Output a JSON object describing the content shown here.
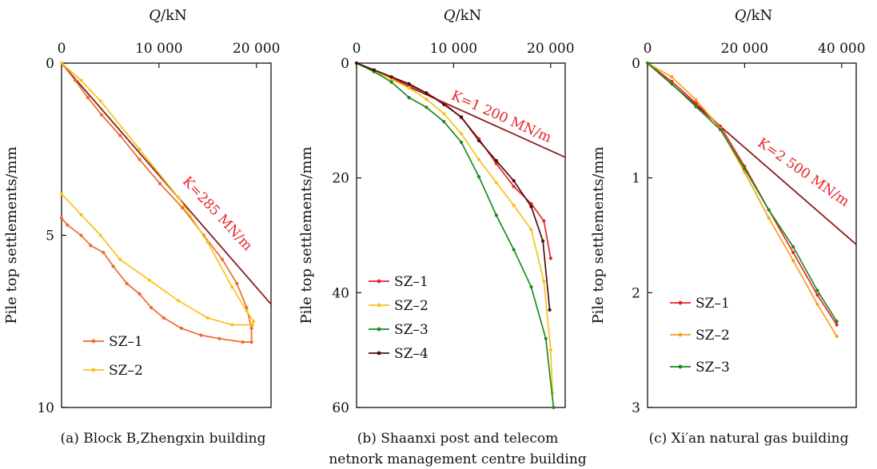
{
  "chart_data": [
    {
      "type": "line",
      "caption": "(a) Block B,Zhengxin building",
      "xlabel_var": "Q",
      "xlabel_unit": "/kN",
      "ylabel": "Pile top settlements/mm",
      "xlim": [
        0,
        21500
      ],
      "ylim": [
        0,
        10
      ],
      "y_inverted": true,
      "x_axis_position": "top",
      "xticks": [
        0,
        10000,
        20000
      ],
      "xtick_labels": [
        "0",
        "10 000",
        "20 000"
      ],
      "yticks": [
        0,
        5,
        10
      ],
      "ytick_labels": [
        "0",
        "5",
        "10"
      ],
      "stiffness_line": {
        "label": "K=285 MN/m",
        "x": [
          0,
          21500
        ],
        "y": [
          0,
          7.0
        ],
        "color": "#8b1a1a"
      },
      "legend_position": "bottom-left",
      "series": [
        {
          "name": "SZ-1",
          "color": "#ef6a2a",
          "x": [
            0,
            1400,
            2700,
            4100,
            6000,
            8000,
            10100,
            12400,
            14600,
            16500,
            18000,
            19000,
            19500,
            19500,
            18600,
            16200,
            14300,
            12300,
            10500,
            9200,
            8000,
            6700,
            5300,
            4300,
            3000,
            2000,
            600,
            0
          ],
          "y": [
            0,
            0.5,
            1.0,
            1.5,
            2.1,
            2.8,
            3.5,
            4.2,
            5.0,
            5.7,
            6.4,
            7.1,
            7.7,
            8.1,
            8.1,
            8.0,
            7.9,
            7.7,
            7.4,
            7.1,
            6.7,
            6.4,
            5.9,
            5.5,
            5.3,
            5.0,
            4.7,
            4.5
          ]
        },
        {
          "name": "SZ-2",
          "color": "#f6c31b",
          "x": [
            0,
            2000,
            4000,
            8000,
            12000,
            15000,
            17500,
            19000,
            19700,
            19600,
            17500,
            15000,
            12000,
            9000,
            6000,
            4000,
            2000,
            0
          ],
          "y": [
            0,
            0.5,
            1.1,
            2.5,
            3.9,
            5.2,
            6.5,
            7.2,
            7.5,
            7.6,
            7.6,
            7.4,
            6.9,
            6.3,
            5.7,
            5.0,
            4.4,
            3.8
          ]
        }
      ]
    },
    {
      "type": "line",
      "caption_line1": "(b) Shaanxi post and telecom",
      "caption_line2": "netnork management centre building",
      "xlabel_var": "Q",
      "xlabel_unit": "/kN",
      "ylabel": "Pile top settlements/mm",
      "xlim": [
        0,
        21500
      ],
      "ylim": [
        0,
        60
      ],
      "y_inverted": true,
      "x_axis_position": "top",
      "xticks": [
        0,
        10000,
        20000
      ],
      "xtick_labels": [
        "0",
        "10 000",
        "20 000"
      ],
      "yticks": [
        0,
        20,
        40,
        60
      ],
      "ytick_labels": [
        "0",
        "20",
        "40",
        "60"
      ],
      "stiffness_line": {
        "label": "K=1 200 MN/m",
        "x": [
          0,
          21500
        ],
        "y": [
          0,
          16.4
        ],
        "color": "#8b1a1a"
      },
      "legend_position": "bottom-left",
      "series": [
        {
          "name": "SZ-1",
          "color": "#e8232a",
          "x": [
            0,
            1800,
            3600,
            5400,
            7200,
            9000,
            10800,
            12600,
            14400,
            16200,
            18000,
            19300,
            20000
          ],
          "y": [
            0,
            1.2,
            2.6,
            3.8,
            5.2,
            7.0,
            9.5,
            13.2,
            17.5,
            21.5,
            24.5,
            27.5,
            34.0
          ]
        },
        {
          "name": "SZ-2",
          "color": "#f6c31b",
          "x": [
            0,
            1800,
            3600,
            5400,
            7200,
            9000,
            10800,
            12600,
            14400,
            16200,
            18000,
            19300,
            20000,
            20200
          ],
          "y": [
            0,
            1.3,
            2.8,
            4.3,
            6.3,
            8.8,
            12.3,
            16.8,
            20.8,
            24.8,
            29.0,
            38.0,
            50.0,
            57.5
          ]
        },
        {
          "name": "SZ-3",
          "color": "#1e8a1e",
          "x": [
            0,
            1800,
            3600,
            5400,
            7200,
            9000,
            10800,
            12600,
            14400,
            16200,
            18000,
            19500,
            20300
          ],
          "y": [
            0,
            1.5,
            3.3,
            6.0,
            7.7,
            10.2,
            13.8,
            19.8,
            26.5,
            32.5,
            39.0,
            48.0,
            60.0
          ]
        },
        {
          "name": "SZ-4",
          "color": "#4a0f0f",
          "x": [
            0,
            1800,
            3600,
            5400,
            7200,
            9000,
            10800,
            12600,
            14400,
            16200,
            18000,
            19200,
            19900
          ],
          "y": [
            0,
            1.2,
            2.4,
            3.6,
            5.2,
            7.2,
            9.4,
            13.5,
            17.0,
            20.5,
            25.0,
            31.0,
            43.0
          ]
        }
      ]
    },
    {
      "type": "line",
      "caption": "(c) Xi′an natural gas building",
      "xlabel_var": "Q",
      "xlabel_unit": "/kN",
      "ylabel": "Pile top settlements/mm",
      "xlim": [
        0,
        43000
      ],
      "ylim": [
        0,
        3
      ],
      "y_inverted": true,
      "x_axis_position": "top",
      "xticks": [
        0,
        20000,
        40000
      ],
      "xtick_labels": [
        "0",
        "20 000",
        "40 000"
      ],
      "yticks": [
        0,
        1,
        2,
        3
      ],
      "ytick_labels": [
        "0",
        "1",
        "2",
        "3"
      ],
      "stiffness_line": {
        "label": "K=2 500 MN/m",
        "x": [
          0,
          43000
        ],
        "y": [
          0,
          1.58
        ],
        "color": "#8b1a1a"
      },
      "legend_position": "bottom-left",
      "series": [
        {
          "name": "SZ-1",
          "color": "#e8232a",
          "x": [
            0,
            5000,
            10000,
            15000,
            20000,
            25000,
            30000,
            35000,
            39000
          ],
          "y": [
            0,
            0.16,
            0.35,
            0.55,
            0.9,
            1.28,
            1.65,
            2.02,
            2.28
          ]
        },
        {
          "name": "SZ-2",
          "color": "#f6a11b",
          "x": [
            0,
            5000,
            10000,
            15000,
            20000,
            25000,
            30000,
            35000,
            39000
          ],
          "y": [
            0,
            0.12,
            0.32,
            0.57,
            0.95,
            1.35,
            1.72,
            2.1,
            2.38
          ]
        },
        {
          "name": "SZ-3",
          "color": "#1e8a1e",
          "x": [
            0,
            5000,
            10000,
            15000,
            20000,
            25000,
            30000,
            35000,
            39000
          ],
          "y": [
            0,
            0.18,
            0.38,
            0.58,
            0.92,
            1.28,
            1.6,
            1.98,
            2.25
          ]
        }
      ]
    }
  ]
}
